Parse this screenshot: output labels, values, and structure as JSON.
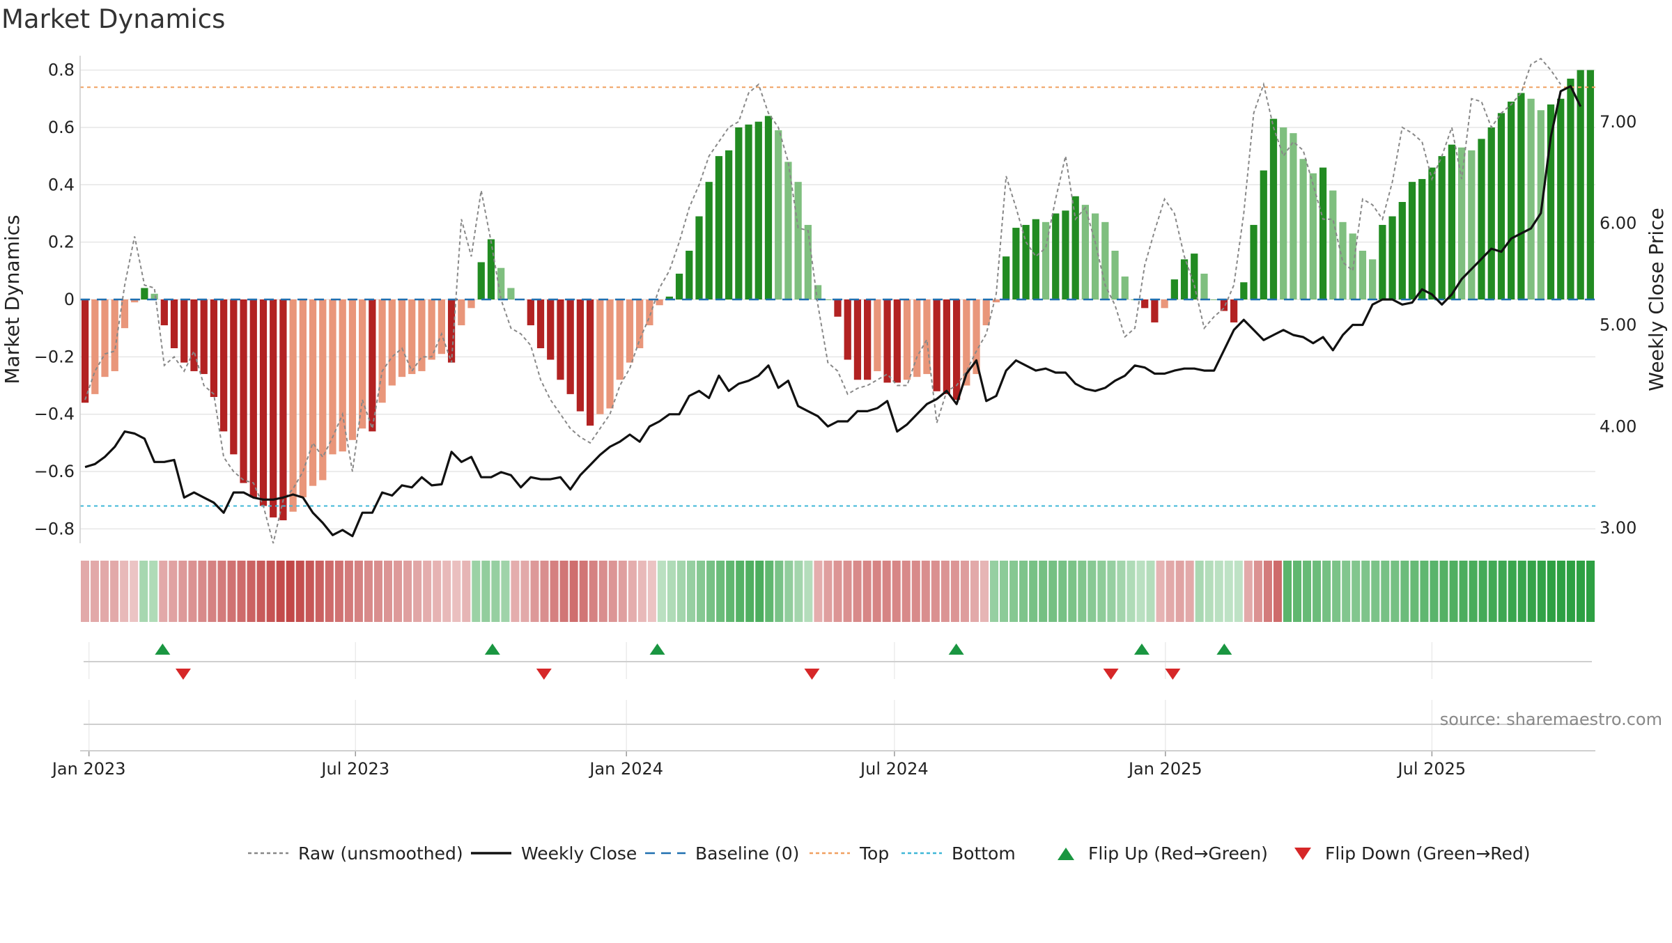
{
  "chart_data": {
    "type": "bar",
    "title": "Market Dynamics",
    "ylabel_left": "Market Dynamics",
    "ylabel_right": "Weekly Close Price",
    "ylim_left": [
      -0.85,
      0.85
    ],
    "ylim_right": [
      2.85,
      7.65
    ],
    "yticks_left": [
      "0.8",
      "0.6",
      "0.4",
      "0.2",
      "0",
      "−0.2",
      "−0.4",
      "−0.6",
      "−0.8"
    ],
    "yticks_left_values": [
      0.8,
      0.6,
      0.4,
      0.2,
      0,
      -0.2,
      -0.4,
      -0.6,
      -0.8
    ],
    "yticks_right": [
      "7.00",
      "6.00",
      "5.00",
      "4.00",
      "3.00"
    ],
    "yticks_right_values": [
      7,
      6,
      5,
      4,
      3
    ],
    "x_start": "2022-12-26",
    "x_end": "2025-10-20",
    "xticks": [
      {
        "label": "Jan 2023",
        "date": "2023-01-01"
      },
      {
        "label": "Jul 2023",
        "date": "2023-07-01"
      },
      {
        "label": "Jan 2024",
        "date": "2024-01-01"
      },
      {
        "label": "Jul 2024",
        "date": "2024-07-01"
      },
      {
        "label": "Jan 2025",
        "date": "2025-01-01"
      },
      {
        "label": "Jul 2025",
        "date": "2025-07-01"
      }
    ],
    "top_level": 0.74,
    "bottom_level": -0.72,
    "baseline": 0,
    "smoothed": [
      -0.36,
      -0.33,
      -0.27,
      -0.25,
      -0.1,
      -0.01,
      0.04,
      0.02,
      -0.09,
      -0.17,
      -0.22,
      -0.25,
      -0.26,
      -0.34,
      -0.46,
      -0.54,
      -0.64,
      -0.69,
      -0.72,
      -0.76,
      -0.77,
      -0.74,
      -0.69,
      -0.65,
      -0.63,
      -0.54,
      -0.53,
      -0.49,
      -0.45,
      -0.46,
      -0.36,
      -0.3,
      -0.27,
      -0.26,
      -0.25,
      -0.21,
      -0.19,
      -0.22,
      -0.09,
      -0.03,
      0.13,
      0.21,
      0.11,
      0.04,
      0.0,
      -0.09,
      -0.17,
      -0.21,
      -0.28,
      -0.33,
      -0.39,
      -0.44,
      -0.4,
      -0.38,
      -0.28,
      -0.22,
      -0.17,
      -0.09,
      -0.02,
      0.01,
      0.09,
      0.17,
      0.29,
      0.41,
      0.5,
      0.52,
      0.6,
      0.61,
      0.62,
      0.64,
      0.59,
      0.48,
      0.41,
      0.26,
      0.05,
      0.0,
      -0.06,
      -0.21,
      -0.28,
      -0.28,
      -0.25,
      -0.29,
      -0.29,
      -0.28,
      -0.27,
      -0.26,
      -0.32,
      -0.33,
      -0.35,
      -0.3,
      -0.26,
      -0.09,
      -0.01,
      0.15,
      0.25,
      0.26,
      0.28,
      0.27,
      0.3,
      0.31,
      0.36,
      0.33,
      0.3,
      0.27,
      0.17,
      0.08,
      0.0,
      -0.03,
      -0.08,
      -0.03,
      0.07,
      0.14,
      0.16,
      0.09,
      0.0,
      -0.04,
      -0.08,
      0.06,
      0.26,
      0.45,
      0.63,
      0.6,
      0.58,
      0.49,
      0.44,
      0.46,
      0.38,
      0.27,
      0.23,
      0.17,
      0.14,
      0.26,
      0.29,
      0.34,
      0.41,
      0.42,
      0.46,
      0.5,
      0.54,
      0.53,
      0.52,
      0.56,
      0.6,
      0.65,
      0.69,
      0.72,
      0.7,
      0.66,
      0.68,
      0.7,
      0.77,
      0.8,
      0.8
    ],
    "raw": [
      -0.35,
      -0.25,
      -0.19,
      -0.18,
      0.05,
      0.22,
      0.05,
      0.04,
      -0.23,
      -0.2,
      -0.25,
      -0.18,
      -0.3,
      -0.33,
      -0.55,
      -0.6,
      -0.63,
      -0.64,
      -0.72,
      -0.85,
      -0.7,
      -0.66,
      -0.6,
      -0.5,
      -0.55,
      -0.48,
      -0.4,
      -0.6,
      -0.35,
      -0.45,
      -0.25,
      -0.2,
      -0.17,
      -0.25,
      -0.2,
      -0.2,
      -0.12,
      -0.22,
      0.28,
      0.15,
      0.38,
      0.2,
      0.0,
      -0.1,
      -0.12,
      -0.16,
      -0.28,
      -0.35,
      -0.4,
      -0.45,
      -0.48,
      -0.5,
      -0.45,
      -0.4,
      -0.3,
      -0.24,
      -0.14,
      -0.06,
      0.04,
      0.1,
      0.2,
      0.32,
      0.4,
      0.5,
      0.55,
      0.6,
      0.62,
      0.72,
      0.75,
      0.65,
      0.6,
      0.48,
      0.25,
      0.24,
      -0.02,
      -0.22,
      -0.25,
      -0.33,
      -0.31,
      -0.3,
      -0.28,
      -0.26,
      -0.3,
      -0.3,
      -0.2,
      -0.14,
      -0.43,
      -0.32,
      -0.3,
      -0.25,
      -0.18,
      -0.12,
      0.02,
      0.43,
      0.32,
      0.2,
      0.15,
      0.18,
      0.35,
      0.5,
      0.28,
      0.32,
      0.2,
      0.05,
      -0.02,
      -0.13,
      -0.1,
      0.12,
      0.24,
      0.35,
      0.3,
      0.15,
      0.05,
      -0.1,
      -0.06,
      -0.03,
      0.05,
      0.3,
      0.65,
      0.75,
      0.6,
      0.5,
      0.55,
      0.52,
      0.4,
      0.28,
      0.28,
      0.13,
      0.1,
      0.35,
      0.33,
      0.28,
      0.41,
      0.6,
      0.58,
      0.55,
      0.42,
      0.5,
      0.6,
      0.42,
      0.7,
      0.69,
      0.6,
      0.65,
      0.68,
      0.72,
      0.82,
      0.84,
      0.8,
      0.75
    ],
    "close": [
      3.6,
      3.63,
      3.7,
      3.8,
      3.95,
      3.93,
      3.88,
      3.65,
      3.65,
      3.67,
      3.3,
      3.35,
      3.3,
      3.25,
      3.15,
      3.35,
      3.35,
      3.3,
      3.28,
      3.28,
      3.3,
      3.33,
      3.3,
      3.15,
      3.05,
      2.93,
      2.98,
      2.92,
      3.15,
      3.15,
      3.35,
      3.32,
      3.42,
      3.4,
      3.5,
      3.42,
      3.43,
      3.75,
      3.65,
      3.7,
      3.5,
      3.5,
      3.55,
      3.52,
      3.4,
      3.5,
      3.48,
      3.48,
      3.5,
      3.38,
      3.52,
      3.62,
      3.72,
      3.8,
      3.85,
      3.92,
      3.85,
      4.0,
      4.05,
      4.12,
      4.12,
      4.3,
      4.35,
      4.28,
      4.5,
      4.35,
      4.42,
      4.45,
      4.5,
      4.6,
      4.38,
      4.45,
      4.2,
      4.15,
      4.1,
      4.0,
      4.05,
      4.05,
      4.15,
      4.15,
      4.18,
      4.25,
      3.95,
      4.02,
      4.12,
      4.22,
      4.27,
      4.35,
      4.22,
      4.52,
      4.65,
      4.25,
      4.3,
      4.55,
      4.65,
      4.6,
      4.55,
      4.57,
      4.53,
      4.53,
      4.42,
      4.37,
      4.35,
      4.38,
      4.45,
      4.5,
      4.6,
      4.58,
      4.52,
      4.52,
      4.55,
      4.57,
      4.57,
      4.55,
      4.55,
      4.75,
      4.95,
      5.05,
      4.95,
      4.85,
      4.9,
      4.95,
      4.9,
      4.88,
      4.82,
      4.88,
      4.75,
      4.9,
      5.0,
      5.0,
      5.2,
      5.25,
      5.25,
      5.2,
      5.22,
      5.35,
      5.3,
      5.2,
      5.3,
      5.45,
      5.55,
      5.65,
      5.75,
      5.72,
      5.85,
      5.9,
      5.95,
      6.1,
      6.85,
      7.3,
      7.35,
      7.15
    ]
  },
  "strip": {
    "segments": [
      0.3,
      0.3,
      0.3,
      0.3,
      0.2,
      0.12,
      0.28,
      0.22,
      0.3,
      0.35,
      0.4,
      0.45,
      0.5,
      0.55,
      0.6,
      0.65,
      0.7,
      0.75,
      0.8,
      0.85,
      0.9,
      0.92,
      0.88,
      0.82,
      0.76,
      0.7,
      0.65,
      0.6,
      0.55,
      0.5,
      0.48,
      0.44,
      0.4,
      0.36,
      0.32,
      0.28,
      0.24,
      0.2,
      0.16,
      0.22,
      0.35,
      0.4,
      0.38,
      0.32,
      0.28,
      0.3,
      0.4,
      0.48,
      0.56,
      0.62,
      0.68,
      0.62,
      0.55,
      0.48,
      0.42,
      0.36,
      0.28,
      0.2,
      0.14,
      0.16,
      0.22,
      0.3,
      0.38,
      0.48,
      0.56,
      0.64,
      0.7,
      0.76,
      0.8,
      0.82,
      0.7,
      0.55,
      0.4,
      0.3,
      0.2,
      0.28,
      0.36,
      0.42,
      0.46,
      0.5,
      0.52,
      0.54,
      0.54,
      0.52,
      0.5,
      0.5,
      0.48,
      0.46,
      0.44,
      0.42,
      0.38,
      0.3,
      0.22,
      0.38,
      0.44,
      0.48,
      0.52,
      0.56,
      0.58,
      0.58,
      0.56,
      0.54,
      0.5,
      0.46,
      0.42,
      0.38,
      0.3,
      0.22,
      0.16,
      0.2,
      0.24,
      0.3,
      0.34,
      0.3,
      0.26,
      0.2,
      0.16,
      0.14,
      0.14,
      0.3,
      0.45,
      0.6,
      0.7,
      0.72,
      0.7,
      0.66,
      0.62,
      0.58,
      0.54,
      0.5,
      0.5,
      0.52,
      0.54,
      0.56,
      0.58,
      0.62,
      0.66,
      0.7,
      0.74,
      0.78,
      0.8,
      0.82,
      0.84,
      0.86,
      0.88,
      0.9,
      0.92,
      0.94,
      0.96,
      0.98,
      1.0,
      1.0,
      1.0,
      1.0,
      1.0
    ],
    "signs": [
      -1,
      -1,
      -1,
      -1,
      -1,
      -1,
      1,
      1,
      -1,
      -1,
      -1,
      -1,
      -1,
      -1,
      -1,
      -1,
      -1,
      -1,
      -1,
      -1,
      -1,
      -1,
      -1,
      -1,
      -1,
      -1,
      -1,
      -1,
      -1,
      -1,
      -1,
      -1,
      -1,
      -1,
      -1,
      -1,
      -1,
      -1,
      -1,
      -1,
      1,
      1,
      1,
      1,
      -1,
      -1,
      -1,
      -1,
      -1,
      -1,
      -1,
      -1,
      -1,
      -1,
      -1,
      -1,
      -1,
      -1,
      -1,
      1,
      1,
      1,
      1,
      1,
      1,
      1,
      1,
      1,
      1,
      1,
      1,
      1,
      1,
      1,
      1,
      -1,
      -1,
      -1,
      -1,
      -1,
      -1,
      -1,
      -1,
      -1,
      -1,
      -1,
      -1,
      -1,
      -1,
      -1,
      -1,
      -1,
      -1,
      1,
      1,
      1,
      1,
      1,
      1,
      1,
      1,
      1,
      1,
      1,
      1,
      1,
      1,
      1,
      1,
      1,
      -1,
      -1,
      -1,
      -1,
      1,
      1,
      1,
      1,
      1,
      -1,
      -1,
      -1,
      -1,
      1,
      1,
      1,
      1,
      1,
      1,
      1,
      1,
      1,
      1,
      1,
      1,
      1,
      1,
      1,
      1,
      1,
      1,
      1,
      1,
      1,
      1,
      1,
      1,
      1,
      1,
      1,
      1,
      1,
      1,
      1,
      1,
      1,
      1,
      1,
      1,
      1
    ]
  },
  "signals": {
    "flip_up": [
      "2023-02-20",
      "2023-10-02",
      "2024-01-22",
      "2024-08-12",
      "2024-12-16",
      "2025-02-10"
    ],
    "flip_down": [
      "2023-03-06",
      "2023-11-06",
      "2024-05-06",
      "2024-11-25",
      "2025-01-06"
    ]
  },
  "legend": [
    {
      "label": "Raw (unsmoothed)",
      "symbol": "dotted-line",
      "color": "#888888"
    },
    {
      "label": "Weekly Close",
      "symbol": "solid-line",
      "color": "#111111"
    },
    {
      "label": "Baseline (0)",
      "symbol": "dashed-line",
      "color": "#1f6fb0"
    },
    {
      "label": "Top",
      "symbol": "dotted-line",
      "color": "#f0a060"
    },
    {
      "label": "Bottom",
      "symbol": "dotted-line",
      "color": "#3fb7d7"
    },
    {
      "label": "Flip Up (Red→Green)",
      "symbol": "triangle-up",
      "color": "#1a9641"
    },
    {
      "label": "Flip Down (Green→Red)",
      "symbol": "triangle-down",
      "color": "#d62728"
    }
  ],
  "source_text": "source: sharemaestro.com",
  "colors": {
    "strong_green": "#228b22",
    "light_green": "#7fbf7f",
    "strong_red": "#b22222",
    "light_red": "#e9967a",
    "flip_up": "#1a9641",
    "flip_down": "#d62728",
    "top": "#f0a060",
    "bottom": "#3fb7d7",
    "baseline": "#1f6fb0"
  }
}
